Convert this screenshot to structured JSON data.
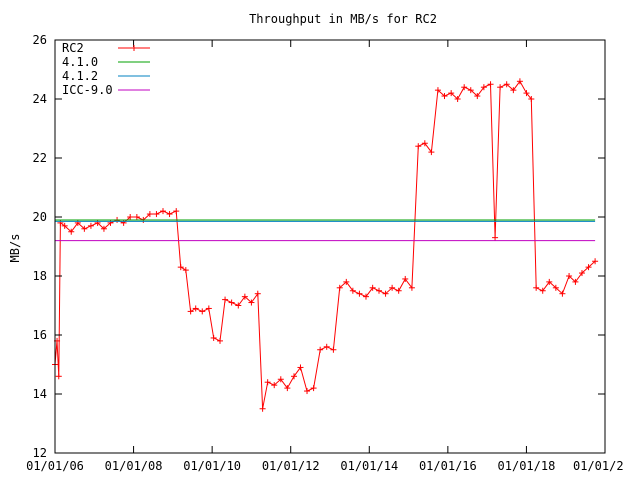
{
  "chart_data": {
    "type": "line",
    "title": "Throughput in MB/s for RC2",
    "xlabel": "",
    "ylabel": "MB/s",
    "xlim": [
      "2006-01-01",
      "2020-01-01"
    ],
    "ylim": [
      12,
      26
    ],
    "x_ticks": [
      "01/01/06",
      "01/01/08",
      "01/01/10",
      "01/01/12",
      "01/01/14",
      "01/01/16",
      "01/01/18",
      "01/01/2"
    ],
    "y_ticks": [
      "12",
      "14",
      "16",
      "18",
      "20",
      "22",
      "24",
      "26"
    ],
    "grid": false,
    "legend_position": "top-left",
    "series": [
      {
        "name": "RC2",
        "color": "#ff0000",
        "marker": "plus",
        "points": [
          [
            "2006-01-01",
            15.0
          ],
          [
            "2006-01-20",
            15.8
          ],
          [
            "2006-02-05",
            14.6
          ],
          [
            "2006-02-20",
            19.8
          ],
          [
            "2006-04-01",
            19.7
          ],
          [
            "2006-06-01",
            19.5
          ],
          [
            "2006-08-01",
            19.8
          ],
          [
            "2006-10-01",
            19.6
          ],
          [
            "2006-12-01",
            19.7
          ],
          [
            "2007-02-01",
            19.8
          ],
          [
            "2007-04-01",
            19.6
          ],
          [
            "2007-06-01",
            19.8
          ],
          [
            "2007-08-01",
            19.9
          ],
          [
            "2007-10-01",
            19.8
          ],
          [
            "2007-12-01",
            20.0
          ],
          [
            "2008-02-01",
            20.0
          ],
          [
            "2008-04-01",
            19.9
          ],
          [
            "2008-06-01",
            20.1
          ],
          [
            "2008-08-01",
            20.1
          ],
          [
            "2008-10-01",
            20.2
          ],
          [
            "2008-12-01",
            20.1
          ],
          [
            "2009-02-01",
            20.2
          ],
          [
            "2009-03-15",
            18.3
          ],
          [
            "2009-05-01",
            18.2
          ],
          [
            "2009-06-15",
            16.8
          ],
          [
            "2009-08-01",
            16.9
          ],
          [
            "2009-10-01",
            16.8
          ],
          [
            "2009-12-01",
            16.9
          ],
          [
            "2010-01-15",
            15.9
          ],
          [
            "2010-03-15",
            15.8
          ],
          [
            "2010-05-01",
            17.2
          ],
          [
            "2010-07-01",
            17.1
          ],
          [
            "2010-09-01",
            17.0
          ],
          [
            "2010-11-01",
            17.3
          ],
          [
            "2011-01-01",
            17.1
          ],
          [
            "2011-03-01",
            17.4
          ],
          [
            "2011-04-15",
            13.5
          ],
          [
            "2011-06-01",
            14.4
          ],
          [
            "2011-08-01",
            14.3
          ],
          [
            "2011-10-01",
            14.5
          ],
          [
            "2011-12-01",
            14.2
          ],
          [
            "2012-02-01",
            14.6
          ],
          [
            "2012-04-01",
            14.9
          ],
          [
            "2012-06-01",
            14.1
          ],
          [
            "2012-08-01",
            14.2
          ],
          [
            "2012-10-01",
            15.5
          ],
          [
            "2012-12-01",
            15.6
          ],
          [
            "2013-02-01",
            15.5
          ],
          [
            "2013-04-01",
            17.6
          ],
          [
            "2013-06-01",
            17.8
          ],
          [
            "2013-08-01",
            17.5
          ],
          [
            "2013-10-01",
            17.4
          ],
          [
            "2013-12-01",
            17.3
          ],
          [
            "2014-02-01",
            17.6
          ],
          [
            "2014-04-01",
            17.5
          ],
          [
            "2014-06-01",
            17.4
          ],
          [
            "2014-08-01",
            17.6
          ],
          [
            "2014-10-01",
            17.5
          ],
          [
            "2014-12-01",
            17.9
          ],
          [
            "2015-02-01",
            17.6
          ],
          [
            "2015-04-01",
            22.4
          ],
          [
            "2015-06-01",
            22.5
          ],
          [
            "2015-08-01",
            22.2
          ],
          [
            "2015-10-01",
            24.3
          ],
          [
            "2015-12-01",
            24.1
          ],
          [
            "2016-02-01",
            24.2
          ],
          [
            "2016-04-01",
            24.0
          ],
          [
            "2016-06-01",
            24.4
          ],
          [
            "2016-08-01",
            24.3
          ],
          [
            "2016-10-01",
            24.1
          ],
          [
            "2016-12-01",
            24.4
          ],
          [
            "2017-02-01",
            24.5
          ],
          [
            "2017-03-15",
            19.3
          ],
          [
            "2017-05-01",
            24.4
          ],
          [
            "2017-07-01",
            24.5
          ],
          [
            "2017-09-01",
            24.3
          ],
          [
            "2017-11-01",
            24.6
          ],
          [
            "2018-01-01",
            24.2
          ],
          [
            "2018-02-15",
            24.0
          ],
          [
            "2018-04-01",
            17.6
          ],
          [
            "2018-06-01",
            17.5
          ],
          [
            "2018-08-01",
            17.8
          ],
          [
            "2018-10-01",
            17.6
          ],
          [
            "2018-12-01",
            17.4
          ],
          [
            "2019-02-01",
            18.0
          ],
          [
            "2019-04-01",
            17.8
          ],
          [
            "2019-06-01",
            18.1
          ],
          [
            "2019-08-01",
            18.3
          ],
          [
            "2019-10-01",
            18.5
          ]
        ]
      },
      {
        "name": "4.1.0",
        "color": "#00a000",
        "constant": 19.9
      },
      {
        "name": "4.1.2",
        "color": "#0080c0",
        "constant": 19.85
      },
      {
        "name": "ICC-9.0",
        "color": "#c000c0",
        "constant": 19.2
      }
    ]
  }
}
